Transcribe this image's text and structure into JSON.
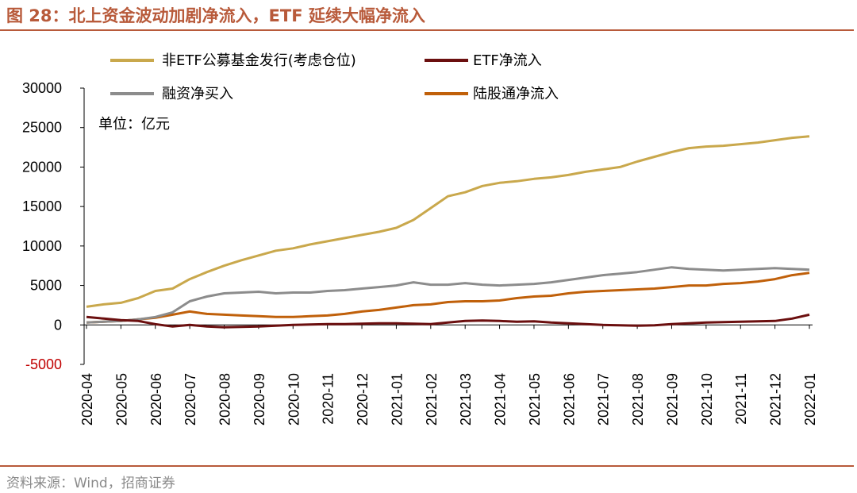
{
  "header": {
    "title": "图 28：北上资金波动加剧净流入，ETF 延续大幅净流入"
  },
  "footer": {
    "source": "资料来源：Wind，招商证券"
  },
  "colors": {
    "accent": "#b85a3a",
    "series_gold": "#c9a84c",
    "series_darkred": "#6b0f0f",
    "series_gray": "#8c8c8c",
    "series_orange": "#c0600a"
  },
  "chart_data": {
    "type": "line",
    "title": "",
    "unit_label": "单位：亿元",
    "xlabel": "",
    "ylabel": "",
    "ylim": [
      -5000,
      30000
    ],
    "yticks": [
      30000,
      25000,
      20000,
      15000,
      10000,
      5000,
      0,
      -5000
    ],
    "categories": [
      "2020-04",
      "2020-05",
      "2020-06",
      "2020-07",
      "2020-08",
      "2020-09",
      "2020-10",
      "2020-11",
      "2020-12",
      "2021-01",
      "2021-02",
      "2021-03",
      "2021-04",
      "2021-05",
      "2021-06",
      "2021-07",
      "2021-08",
      "2021-09",
      "2021-10",
      "2021-11",
      "2021-12",
      "2022-01"
    ],
    "legend": "top",
    "series": [
      {
        "name": "非ETF公募基金发行(考虑仓位)",
        "color": "#c9a84c",
        "points": [
          [
            0,
            2300
          ],
          [
            0.5,
            2600
          ],
          [
            1,
            2800
          ],
          [
            1.5,
            3400
          ],
          [
            2,
            4300
          ],
          [
            2.5,
            4600
          ],
          [
            3,
            5800
          ],
          [
            3.5,
            6700
          ],
          [
            4,
            7500
          ],
          [
            4.5,
            8200
          ],
          [
            5,
            8800
          ],
          [
            5.5,
            9400
          ],
          [
            6,
            9700
          ],
          [
            6.5,
            10200
          ],
          [
            7,
            10600
          ],
          [
            7.5,
            11000
          ],
          [
            8,
            11400
          ],
          [
            8.5,
            11800
          ],
          [
            9,
            12300
          ],
          [
            9.5,
            13300
          ],
          [
            10,
            14800
          ],
          [
            10.5,
            16300
          ],
          [
            11,
            16800
          ],
          [
            11.5,
            17600
          ],
          [
            12,
            18000
          ],
          [
            12.5,
            18200
          ],
          [
            13,
            18500
          ],
          [
            13.5,
            18700
          ],
          [
            14,
            19000
          ],
          [
            14.5,
            19400
          ],
          [
            15,
            19700
          ],
          [
            15.5,
            20000
          ],
          [
            16,
            20700
          ],
          [
            16.5,
            21300
          ],
          [
            17,
            21900
          ],
          [
            17.5,
            22400
          ],
          [
            18,
            22600
          ],
          [
            18.5,
            22700
          ],
          [
            19,
            22900
          ],
          [
            19.5,
            23100
          ],
          [
            20,
            23400
          ],
          [
            20.5,
            23700
          ],
          [
            21,
            23900
          ]
        ]
      },
      {
        "name": "ETF净流入",
        "color": "#6b0f0f",
        "points": [
          [
            0,
            1000
          ],
          [
            0.5,
            800
          ],
          [
            1,
            600
          ],
          [
            1.5,
            500
          ],
          [
            2,
            100
          ],
          [
            2.5,
            -200
          ],
          [
            3,
            0
          ],
          [
            3.5,
            -200
          ],
          [
            4,
            -300
          ],
          [
            4.5,
            -250
          ],
          [
            5,
            -200
          ],
          [
            5.5,
            -100
          ],
          [
            6,
            0
          ],
          [
            6.5,
            50
          ],
          [
            7,
            100
          ],
          [
            7.5,
            100
          ],
          [
            8,
            150
          ],
          [
            8.5,
            200
          ],
          [
            9,
            200
          ],
          [
            9.5,
            150
          ],
          [
            10,
            100
          ],
          [
            10.5,
            300
          ],
          [
            11,
            500
          ],
          [
            11.5,
            550
          ],
          [
            12,
            500
          ],
          [
            12.5,
            400
          ],
          [
            13,
            450
          ],
          [
            13.5,
            300
          ],
          [
            14,
            200
          ],
          [
            14.5,
            100
          ],
          [
            15,
            0
          ],
          [
            15.5,
            -50
          ],
          [
            16,
            -100
          ],
          [
            16.5,
            -50
          ],
          [
            17,
            100
          ],
          [
            17.5,
            200
          ],
          [
            18,
            300
          ],
          [
            18.5,
            350
          ],
          [
            19,
            400
          ],
          [
            19.5,
            450
          ],
          [
            20,
            500
          ],
          [
            20.5,
            800
          ],
          [
            21,
            1300
          ]
        ]
      },
      {
        "name": "融资净买入",
        "color": "#8c8c8c",
        "points": [
          [
            0,
            300
          ],
          [
            0.5,
            400
          ],
          [
            1,
            500
          ],
          [
            1.5,
            700
          ],
          [
            2,
            1000
          ],
          [
            2.5,
            1600
          ],
          [
            3,
            3000
          ],
          [
            3.5,
            3600
          ],
          [
            4,
            4000
          ],
          [
            4.5,
            4100
          ],
          [
            5,
            4200
          ],
          [
            5.5,
            4000
          ],
          [
            6,
            4100
          ],
          [
            6.5,
            4100
          ],
          [
            7,
            4300
          ],
          [
            7.5,
            4400
          ],
          [
            8,
            4600
          ],
          [
            8.5,
            4800
          ],
          [
            9,
            5000
          ],
          [
            9.5,
            5400
          ],
          [
            10,
            5100
          ],
          [
            10.5,
            5100
          ],
          [
            11,
            5300
          ],
          [
            11.5,
            5100
          ],
          [
            12,
            5000
          ],
          [
            12.5,
            5100
          ],
          [
            13,
            5200
          ],
          [
            13.5,
            5400
          ],
          [
            14,
            5700
          ],
          [
            14.5,
            6000
          ],
          [
            15,
            6300
          ],
          [
            15.5,
            6500
          ],
          [
            16,
            6700
          ],
          [
            16.5,
            7000
          ],
          [
            17,
            7300
          ],
          [
            17.5,
            7100
          ],
          [
            18,
            7000
          ],
          [
            18.5,
            6900
          ],
          [
            19,
            7000
          ],
          [
            19.5,
            7100
          ],
          [
            20,
            7200
          ],
          [
            20.5,
            7100
          ],
          [
            21,
            7000
          ]
        ]
      },
      {
        "name": "陆股通净流入",
        "color": "#c0600a",
        "points": [
          [
            0,
            300
          ],
          [
            0.5,
            400
          ],
          [
            1,
            500
          ],
          [
            1.5,
            700
          ],
          [
            2,
            900
          ],
          [
            2.5,
            1300
          ],
          [
            3,
            1700
          ],
          [
            3.5,
            1400
          ],
          [
            4,
            1300
          ],
          [
            4.5,
            1200
          ],
          [
            5,
            1100
          ],
          [
            5.5,
            1000
          ],
          [
            6,
            1000
          ],
          [
            6.5,
            1100
          ],
          [
            7,
            1200
          ],
          [
            7.5,
            1400
          ],
          [
            8,
            1700
          ],
          [
            8.5,
            1900
          ],
          [
            9,
            2200
          ],
          [
            9.5,
            2500
          ],
          [
            10,
            2600
          ],
          [
            10.5,
            2900
          ],
          [
            11,
            3000
          ],
          [
            11.5,
            3000
          ],
          [
            12,
            3100
          ],
          [
            12.5,
            3400
          ],
          [
            13,
            3600
          ],
          [
            13.5,
            3700
          ],
          [
            14,
            4000
          ],
          [
            14.5,
            4200
          ],
          [
            15,
            4300
          ],
          [
            15.5,
            4400
          ],
          [
            16,
            4500
          ],
          [
            16.5,
            4600
          ],
          [
            17,
            4800
          ],
          [
            17.5,
            5000
          ],
          [
            18,
            5000
          ],
          [
            18.5,
            5200
          ],
          [
            19,
            5300
          ],
          [
            19.5,
            5500
          ],
          [
            20,
            5800
          ],
          [
            20.5,
            6300
          ],
          [
            21,
            6600
          ]
        ]
      }
    ]
  }
}
